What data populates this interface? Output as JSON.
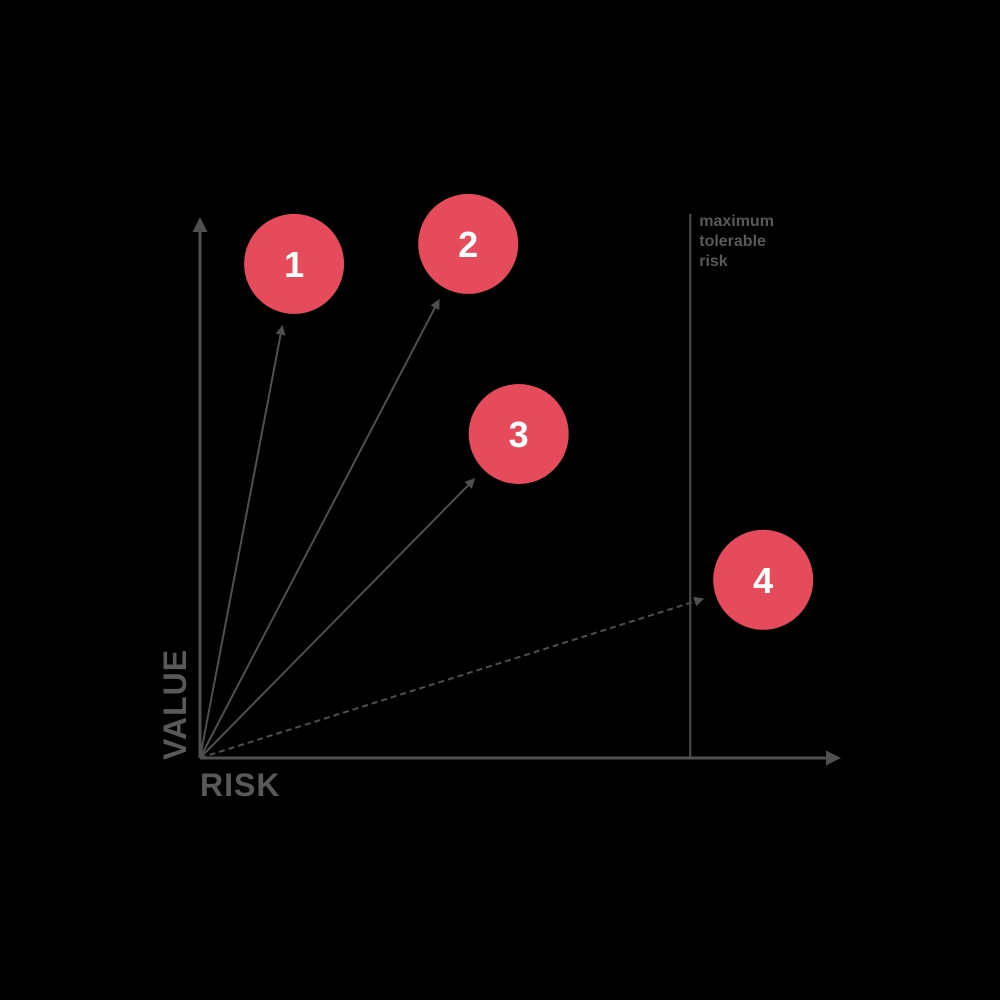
{
  "chart_data": {
    "type": "scatter",
    "xlabel": "RISK",
    "ylabel": "VALUE",
    "axes": {
      "x_range": [
        0,
        1
      ],
      "y_range": [
        0,
        1
      ],
      "grid": false,
      "style": "conceptual diagram, arrows from origin to each point"
    },
    "points": [
      {
        "label": "1",
        "risk": 0.147,
        "value": 0.915,
        "arrow_style": "solid"
      },
      {
        "label": "2",
        "risk": 0.419,
        "value": 0.952,
        "arrow_style": "solid"
      },
      {
        "label": "3",
        "risk": 0.498,
        "value": 0.6,
        "arrow_style": "solid"
      },
      {
        "label": "4",
        "risk": 0.88,
        "value": 0.33,
        "arrow_style": "dashed"
      }
    ],
    "threshold": {
      "risk": 0.766,
      "label": "maximum\ntolerable\nrisk"
    },
    "point_radius": 50
  },
  "colors": {
    "background": "#000000",
    "line": "#4f4f4f",
    "text": "#595959",
    "point_fill": "#e54b5a",
    "point_text": "#ffffff"
  }
}
